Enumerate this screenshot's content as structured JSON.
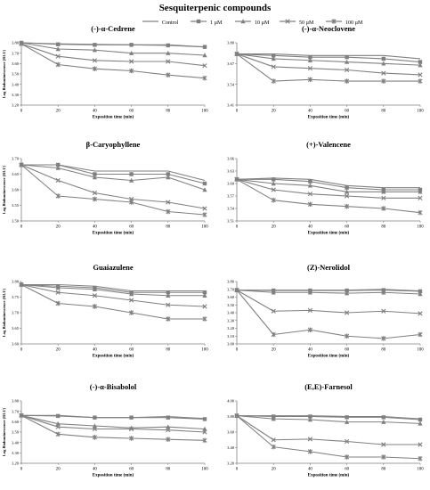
{
  "figure": {
    "title": "Sesquiterpenic compounds"
  },
  "colors": {
    "line": "#808080",
    "axis": "#7f7f7f",
    "text": "#000000"
  },
  "legend": [
    {
      "name": "Control",
      "marker": "none"
    },
    {
      "name": "1 µM",
      "marker": "square"
    },
    {
      "name": "10 µM",
      "marker": "triangle"
    },
    {
      "name": "50 µM",
      "marker": "x"
    },
    {
      "name": "100 µM",
      "marker": "star"
    }
  ],
  "chart_data": [
    {
      "type": "line",
      "title": "(-)-α-Cedrene",
      "xlabel": "Exposition time (min)",
      "ylabel": "Log Bioluminescence (RLU)",
      "x": [
        0,
        20,
        40,
        60,
        80,
        100
      ],
      "xlim": [
        0,
        100
      ],
      "xticks": [
        "0",
        "20",
        "40",
        "60",
        "80",
        "100"
      ],
      "ylim": [
        3.2,
        3.8
      ],
      "yticks": [
        "3.20",
        "3.30",
        "3.40",
        "3.50",
        "3.60",
        "3.70",
        "3.80"
      ],
      "series": [
        {
          "name": "Control",
          "values": [
            3.8,
            3.79,
            3.785,
            3.78,
            3.78,
            3.76
          ]
        },
        {
          "name": "1 µM",
          "values": [
            3.8,
            3.785,
            3.78,
            3.78,
            3.775,
            3.76
          ]
        },
        {
          "name": "10 µM",
          "values": [
            3.8,
            3.74,
            3.73,
            3.7,
            3.7,
            3.68
          ]
        },
        {
          "name": "50 µM",
          "values": [
            3.79,
            3.67,
            3.63,
            3.62,
            3.62,
            3.58
          ]
        },
        {
          "name": "100 µM",
          "values": [
            3.79,
            3.59,
            3.55,
            3.53,
            3.49,
            3.46
          ]
        }
      ]
    },
    {
      "type": "line",
      "title": "(-)-α-Neoclovene",
      "xlabel": "Exposition time (min)",
      "ylabel": "",
      "x": [
        0,
        20,
        40,
        60,
        80,
        100
      ],
      "xlim": [
        0,
        100
      ],
      "xticks": [
        "0",
        "20",
        "40",
        "60",
        "80",
        "100"
      ],
      "ylim": [
        3.41,
        3.8
      ],
      "yticks": [
        "3.41",
        "3.54",
        "3.67",
        "3.80"
      ],
      "series": [
        {
          "name": "Control",
          "values": [
            3.73,
            3.73,
            3.72,
            3.72,
            3.72,
            3.7
          ]
        },
        {
          "name": "1 µM",
          "values": [
            3.73,
            3.72,
            3.71,
            3.71,
            3.7,
            3.68
          ]
        },
        {
          "name": "10 µM",
          "values": [
            3.73,
            3.7,
            3.69,
            3.68,
            3.67,
            3.66
          ]
        },
        {
          "name": "50 µM",
          "values": [
            3.73,
            3.65,
            3.64,
            3.63,
            3.61,
            3.6
          ]
        },
        {
          "name": "100 µM",
          "values": [
            3.73,
            3.56,
            3.57,
            3.56,
            3.56,
            3.56
          ]
        }
      ]
    },
    {
      "type": "line",
      "title": "β-Caryophyllene",
      "xlabel": "Exposition time (min)",
      "ylabel": "Log Bioluminescence (RLU)",
      "x": [
        0,
        20,
        40,
        60,
        80,
        100
      ],
      "xlim": [
        0,
        100
      ],
      "xticks": [
        "0",
        "20",
        "40",
        "60",
        "80",
        "100"
      ],
      "ylim": [
        3.5,
        3.7
      ],
      "yticks": [
        "3.50",
        "3.55",
        "3.60",
        "3.65",
        "3.70"
      ],
      "series": [
        {
          "name": "Control",
          "values": [
            3.68,
            3.68,
            3.66,
            3.66,
            3.66,
            3.63
          ]
        },
        {
          "name": "1 µM",
          "values": [
            3.68,
            3.68,
            3.65,
            3.65,
            3.65,
            3.62
          ]
        },
        {
          "name": "10 µM",
          "values": [
            3.68,
            3.67,
            3.64,
            3.63,
            3.64,
            3.6
          ]
        },
        {
          "name": "50 µM",
          "values": [
            3.68,
            3.63,
            3.59,
            3.57,
            3.56,
            3.54
          ]
        },
        {
          "name": "100 µM",
          "values": [
            3.68,
            3.58,
            3.57,
            3.56,
            3.53,
            3.52
          ]
        }
      ]
    },
    {
      "type": "line",
      "title": "(+)-Valencene",
      "xlabel": "Exposition time (min)",
      "ylabel": "",
      "x": [
        0,
        20,
        40,
        60,
        80,
        100
      ],
      "xlim": [
        0,
        100
      ],
      "xticks": [
        "0",
        "20",
        "40",
        "60",
        "80",
        "100"
      ],
      "ylim": [
        3.51,
        3.66
      ],
      "yticks": [
        "3.51",
        "3.54",
        "3.57",
        "3.60",
        "3.63",
        "3.66"
      ],
      "series": [
        {
          "name": "Control",
          "values": [
            3.61,
            3.613,
            3.61,
            3.595,
            3.59,
            3.59
          ]
        },
        {
          "name": "1 µM",
          "values": [
            3.61,
            3.61,
            3.605,
            3.59,
            3.585,
            3.585
          ]
        },
        {
          "name": "10 µM",
          "values": [
            3.61,
            3.6,
            3.595,
            3.58,
            3.58,
            3.58
          ]
        },
        {
          "name": "50 µM",
          "values": [
            3.61,
            3.585,
            3.575,
            3.57,
            3.565,
            3.565
          ]
        },
        {
          "name": "100 µM",
          "values": [
            3.61,
            3.56,
            3.55,
            3.545,
            3.54,
            3.53
          ]
        }
      ]
    },
    {
      "type": "line",
      "title": "Guaiazulene",
      "xlabel": "Exposition time (min)",
      "ylabel": "Log Bioluminescence (RLU)",
      "x": [
        0,
        20,
        40,
        60,
        80,
        100
      ],
      "xlim": [
        0,
        100
      ],
      "xticks": [
        "0",
        "20",
        "40",
        "60",
        "80",
        "100"
      ],
      "ylim": [
        3.6,
        3.8
      ],
      "yticks": [
        "3.60",
        "3.65",
        "3.70",
        "3.75",
        "3.80"
      ],
      "series": [
        {
          "name": "Control",
          "values": [
            3.79,
            3.79,
            3.785,
            3.77,
            3.77,
            3.77
          ]
        },
        {
          "name": "1 µM",
          "values": [
            3.79,
            3.785,
            3.78,
            3.765,
            3.765,
            3.765
          ]
        },
        {
          "name": "10 µM",
          "values": [
            3.79,
            3.78,
            3.775,
            3.76,
            3.755,
            3.755
          ]
        },
        {
          "name": "50 µM",
          "values": [
            3.79,
            3.765,
            3.755,
            3.74,
            3.725,
            3.72
          ]
        },
        {
          "name": "100 µM",
          "values": [
            3.79,
            3.73,
            3.72,
            3.7,
            3.68,
            3.68
          ]
        }
      ]
    },
    {
      "type": "line",
      "title": "(Z)-Nerolidol",
      "xlabel": "Exposition time (min)",
      "ylabel": "",
      "x": [
        0,
        20,
        40,
        60,
        80,
        100
      ],
      "xlim": [
        0,
        100
      ],
      "xticks": [
        "0",
        "20",
        "40",
        "60",
        "80",
        "100"
      ],
      "ylim": [
        3.0,
        3.8
      ],
      "yticks": [
        "3.00",
        "3.10",
        "3.20",
        "3.30",
        "3.40",
        "3.50",
        "3.60",
        "3.70",
        "3.80"
      ],
      "series": [
        {
          "name": "Control",
          "values": [
            3.69,
            3.69,
            3.69,
            3.69,
            3.7,
            3.68
          ]
        },
        {
          "name": "1 µM",
          "values": [
            3.69,
            3.685,
            3.685,
            3.685,
            3.69,
            3.675
          ]
        },
        {
          "name": "10 µM",
          "values": [
            3.69,
            3.66,
            3.66,
            3.65,
            3.66,
            3.64
          ]
        },
        {
          "name": "50 µM",
          "values": [
            3.69,
            3.42,
            3.43,
            3.4,
            3.42,
            3.39
          ]
        },
        {
          "name": "100 µM",
          "values": [
            3.69,
            3.12,
            3.18,
            3.1,
            3.07,
            3.12
          ]
        }
      ]
    },
    {
      "type": "line",
      "title": "(-)-α-Bisabolol",
      "xlabel": "Exposition time (min)",
      "ylabel": "Log Bioluminescence (RLU)",
      "x": [
        0,
        20,
        40,
        60,
        80,
        100
      ],
      "xlim": [
        0,
        100
      ],
      "xticks": [
        "0",
        "20",
        "40",
        "60",
        "80",
        "100"
      ],
      "ylim": [
        3.2,
        3.8
      ],
      "yticks": [
        "3.20",
        "3.30",
        "3.40",
        "3.50",
        "3.60",
        "3.70",
        "3.80"
      ],
      "series": [
        {
          "name": "Control",
          "values": [
            3.66,
            3.66,
            3.64,
            3.64,
            3.65,
            3.63
          ]
        },
        {
          "name": "1 µM",
          "values": [
            3.66,
            3.655,
            3.64,
            3.64,
            3.64,
            3.625
          ]
        },
        {
          "name": "10 µM",
          "values": [
            3.66,
            3.58,
            3.56,
            3.54,
            3.55,
            3.53
          ]
        },
        {
          "name": "50 µM",
          "values": [
            3.66,
            3.55,
            3.53,
            3.53,
            3.52,
            3.5
          ]
        },
        {
          "name": "100 µM",
          "values": [
            3.66,
            3.48,
            3.45,
            3.44,
            3.43,
            3.42
          ]
        }
      ]
    },
    {
      "type": "line",
      "title": "(E,E)-Farnesol",
      "xlabel": "Exposition time (min)",
      "ylabel": "",
      "x": [
        0,
        20,
        40,
        60,
        80,
        100
      ],
      "xlim": [
        0,
        100
      ],
      "xticks": [
        "0",
        "20",
        "40",
        "60",
        "80",
        "100"
      ],
      "ylim": [
        3.2,
        4.0
      ],
      "yticks": [
        "3.20",
        "3.40",
        "3.60",
        "3.80",
        "4.00"
      ],
      "series": [
        {
          "name": "Control",
          "values": [
            3.81,
            3.81,
            3.81,
            3.8,
            3.8,
            3.77
          ]
        },
        {
          "name": "1 µM",
          "values": [
            3.81,
            3.8,
            3.8,
            3.79,
            3.79,
            3.76
          ]
        },
        {
          "name": "10 µM",
          "values": [
            3.81,
            3.77,
            3.76,
            3.73,
            3.73,
            3.71
          ]
        },
        {
          "name": "50 µM",
          "values": [
            3.81,
            3.5,
            3.51,
            3.48,
            3.44,
            3.44
          ]
        },
        {
          "name": "100 µM",
          "values": [
            3.81,
            3.41,
            3.35,
            3.28,
            3.28,
            3.26
          ]
        }
      ]
    }
  ]
}
